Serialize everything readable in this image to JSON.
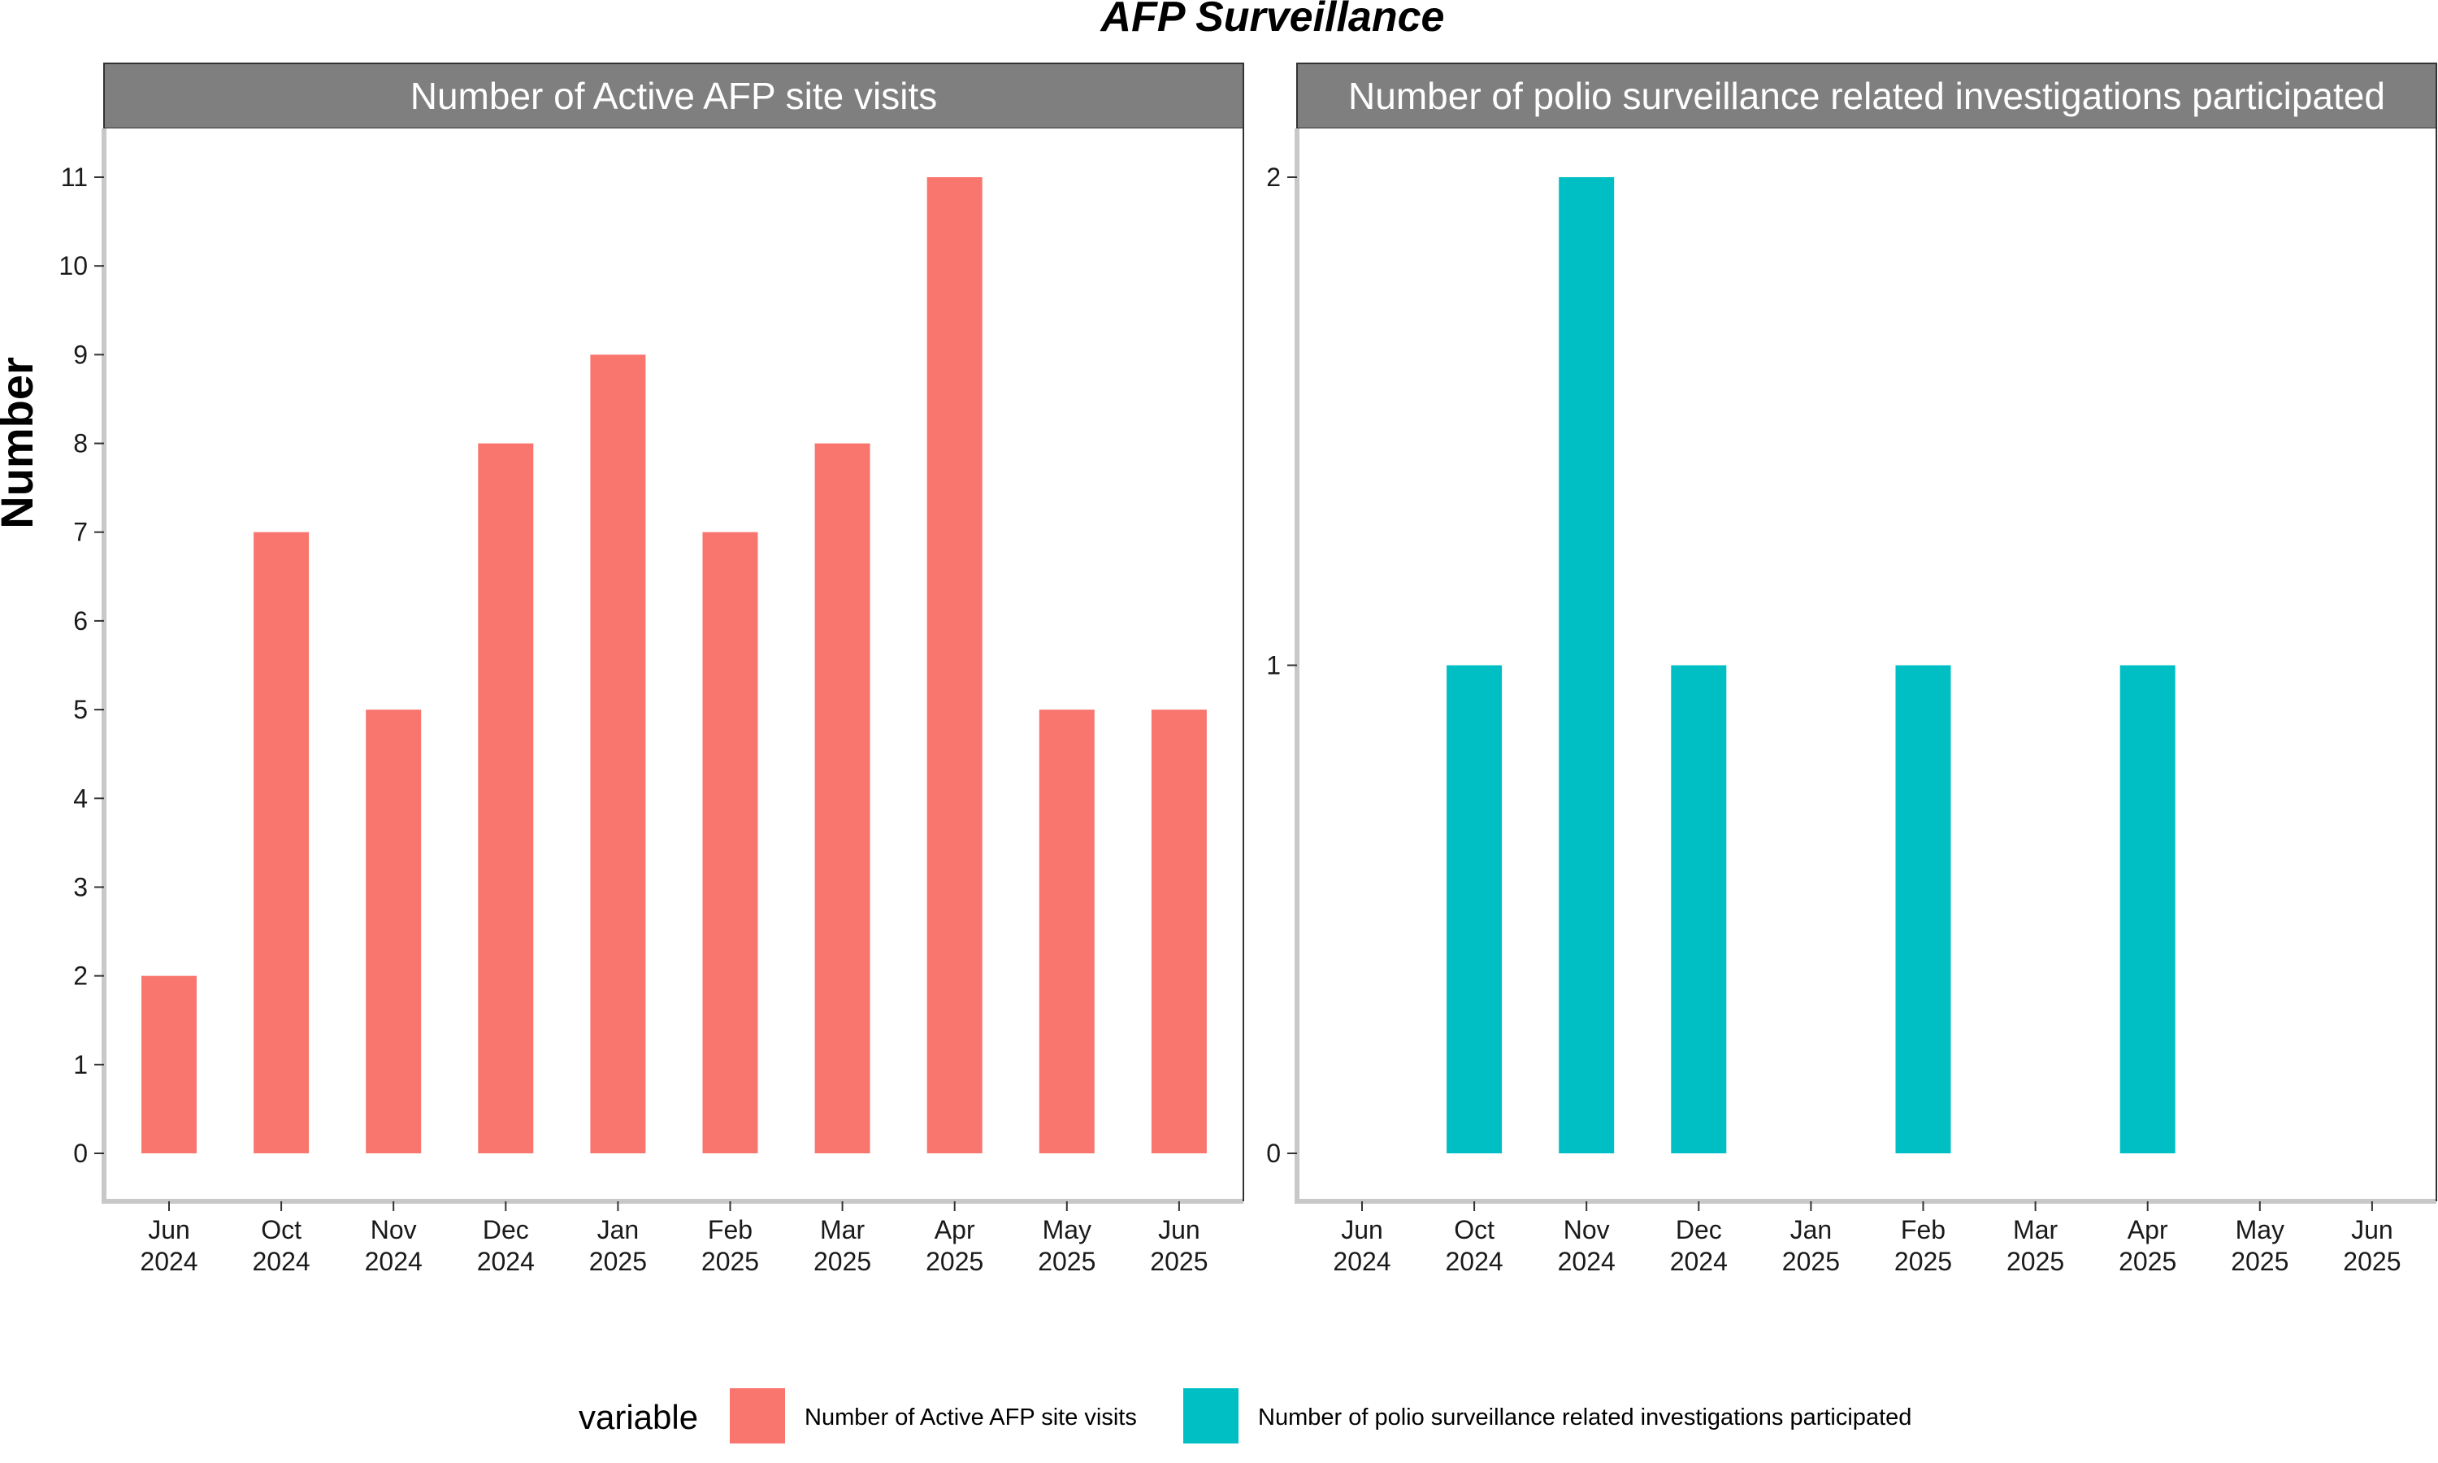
{
  "chart_data": {
    "type": "bar",
    "title": "AFP Surveillance",
    "ylabel": "Number",
    "categories": [
      [
        "Jun",
        "2024"
      ],
      [
        "Oct",
        "2024"
      ],
      [
        "Nov",
        "2024"
      ],
      [
        "Dec",
        "2024"
      ],
      [
        "Jan",
        "2025"
      ],
      [
        "Feb",
        "2025"
      ],
      [
        "Mar",
        "2025"
      ],
      [
        "Apr",
        "2025"
      ],
      [
        "May",
        "2025"
      ],
      [
        "Jun",
        "2025"
      ]
    ],
    "panels": [
      {
        "name": "Number of Active AFP site visits",
        "color": "#F8766D",
        "ylim": [
          0,
          11
        ],
        "yticks": [
          0,
          1,
          2,
          3,
          4,
          5,
          6,
          7,
          8,
          9,
          10,
          11
        ],
        "values": [
          2,
          7,
          5,
          8,
          9,
          7,
          8,
          11,
          5,
          5
        ]
      },
      {
        "name": "Number of polio surveillance related investigations participated",
        "color": "#00BFC4",
        "ylim": [
          0,
          2
        ],
        "yticks": [
          0,
          1,
          2
        ],
        "values": [
          0,
          1,
          2,
          1,
          0,
          1,
          0,
          1,
          0,
          0
        ]
      }
    ],
    "legend": {
      "title": "variable",
      "position": "bottom",
      "entries": [
        {
          "label": "Number of Active AFP site visits",
          "color": "#F8766D"
        },
        {
          "label": "Number of polio surveillance related investigations participated",
          "color": "#00BFC4"
        }
      ]
    },
    "grid": false
  }
}
